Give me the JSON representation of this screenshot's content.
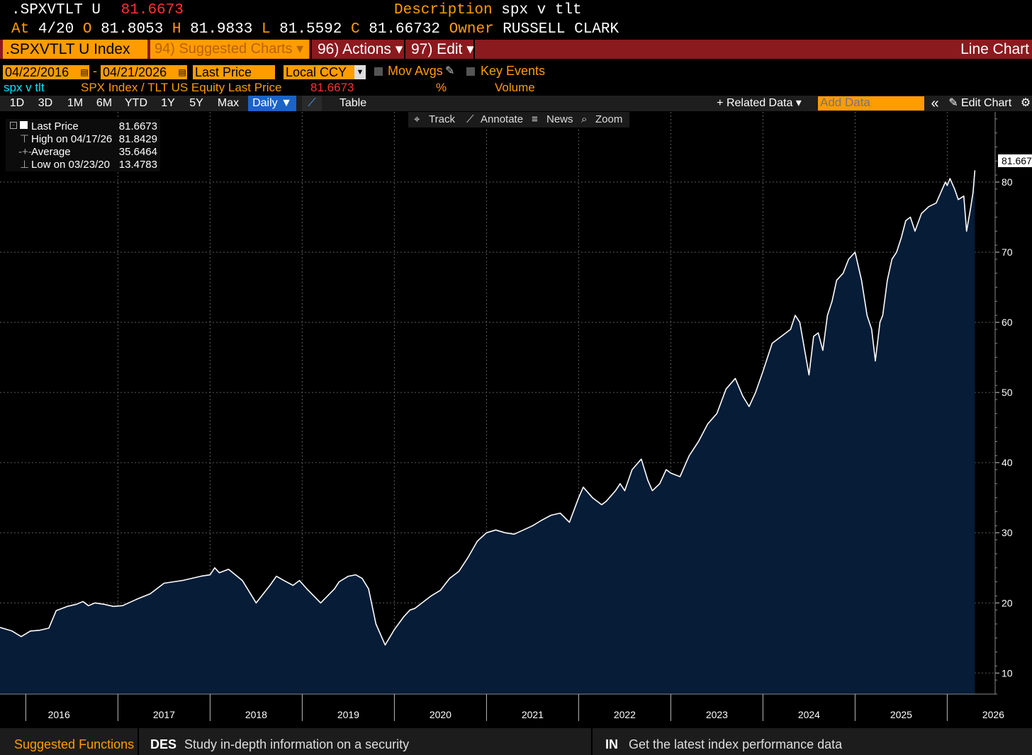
{
  "header": {
    "ticker": ".SPXVTLT U",
    "price": "81.6673",
    "description_label": "Description",
    "description_value": "spx v tlt",
    "at_label": "At",
    "at_value": "4/20",
    "open_label": "O",
    "open_value": "81.8053",
    "high_label": "H",
    "high_value": "81.9833",
    "low_label": "L",
    "low_value": "81.5592",
    "close_label": "C",
    "close_value": "81.66732",
    "owner_label": "Owner",
    "owner_value": "RUSSELL CLARK"
  },
  "menubar": {
    "security": ".SPXVTLT U Index",
    "suggested": "94) Suggested Charts ▾",
    "actions": "96) Actions ▾",
    "edit": "97) Edit ▾",
    "chart_type": "Line Chart"
  },
  "controls": {
    "start_date": "04/22/2016",
    "dash": "-",
    "end_date": "04/21/2026",
    "field": "Last Price",
    "currency": "Local CCY",
    "mov_avgs": "Mov Avgs",
    "key_events": "Key Events"
  },
  "series_row": {
    "name": "spx v tlt",
    "formula": "SPX Index / TLT US Equity Last Price",
    "value": "81.6673",
    "pct": "%",
    "volume": "Volume"
  },
  "periods": [
    "1D",
    "3D",
    "1M",
    "6M",
    "YTD",
    "1Y",
    "5Y",
    "Max"
  ],
  "frequency": "Daily ▼",
  "table_label": "Table",
  "right_tools": {
    "related": "+ Related Data ▾",
    "add_data_placeholder": "Add Data",
    "collapse": "«",
    "edit_chart": "Edit Chart"
  },
  "chart_tools": {
    "track": "Track",
    "annotate": "Annotate",
    "news": "News",
    "zoom": "Zoom"
  },
  "legend": {
    "last_label": "Last Price",
    "last_value": "81.6673",
    "high_label": "High on 04/17/26",
    "high_value": "81.8429",
    "avg_label": "Average",
    "avg_value": "35.6464",
    "low_label": "Low on 03/23/20",
    "low_value": "13.4783"
  },
  "last_tag": "81.667",
  "footer": {
    "suggested": "Suggested Functions",
    "des_code": "DES",
    "des_text": "Study in-depth information on a security",
    "in_code": "IN",
    "in_text": "Get the latest index performance data"
  },
  "colors": {
    "accent": "#ff9c00",
    "menubar": "#8b1a1f",
    "area_fill": "#061c37",
    "price_red": "#ff3232"
  },
  "chart_data": {
    "type": "area",
    "title": "spx v tlt",
    "xlabel": "",
    "ylabel": "",
    "ylim": [
      7,
      90
    ],
    "xlim": [
      2015.72,
      2026.52
    ],
    "yticks": [
      10,
      20,
      30,
      40,
      50,
      60,
      70,
      80
    ],
    "year_ticks": [
      2016,
      2017,
      2018,
      2019,
      2020,
      2021,
      2022,
      2023,
      2024,
      2025,
      2026
    ],
    "x": [
      2015.72,
      2015.85,
      2015.95,
      2016.05,
      2016.15,
      2016.25,
      2016.33,
      2016.45,
      2016.55,
      2016.62,
      2016.68,
      2016.75,
      2016.85,
      2016.95,
      2017.05,
      2017.2,
      2017.35,
      2017.5,
      2017.6,
      2017.7,
      2017.8,
      2017.9,
      2018.0,
      2018.05,
      2018.1,
      2018.2,
      2018.35,
      2018.5,
      2018.65,
      2018.72,
      2018.8,
      2018.9,
      2018.97,
      2019.05,
      2019.2,
      2019.35,
      2019.4,
      2019.5,
      2019.58,
      2019.65,
      2019.72,
      2019.8,
      2019.9,
      2020.0,
      2020.1,
      2020.17,
      2020.22,
      2020.3,
      2020.4,
      2020.5,
      2020.6,
      2020.7,
      2020.8,
      2020.9,
      2021.0,
      2021.1,
      2021.2,
      2021.3,
      2021.4,
      2021.5,
      2021.6,
      2021.7,
      2021.8,
      2021.9,
      2022.0,
      2022.05,
      2022.15,
      2022.25,
      2022.3,
      2022.4,
      2022.45,
      2022.5,
      2022.58,
      2022.68,
      2022.75,
      2022.8,
      2022.88,
      2022.95,
      2023.0,
      2023.1,
      2023.2,
      2023.3,
      2023.4,
      2023.5,
      2023.6,
      2023.7,
      2023.78,
      2023.85,
      2023.92,
      2024.0,
      2024.1,
      2024.2,
      2024.3,
      2024.35,
      2024.4,
      2024.5,
      2024.55,
      2024.6,
      2024.65,
      2024.7,
      2024.75,
      2024.8,
      2024.87,
      2024.93,
      2025.0,
      2025.07,
      2025.13,
      2025.18,
      2025.22,
      2025.27,
      2025.3,
      2025.35,
      2025.4,
      2025.45,
      2025.5,
      2025.55,
      2025.6,
      2025.65,
      2025.72,
      2025.8,
      2025.88,
      2025.93,
      2025.98,
      2026.0,
      2026.03,
      2026.08,
      2026.12,
      2026.18,
      2026.21,
      2026.25,
      2026.28,
      2026.3
    ],
    "values": [
      16.5,
      16.0,
      15.2,
      16.0,
      16.1,
      16.4,
      18.9,
      19.5,
      19.8,
      20.2,
      19.6,
      20.0,
      19.8,
      19.5,
      19.6,
      20.5,
      21.3,
      22.8,
      23.0,
      23.2,
      23.5,
      23.8,
      24.0,
      25.0,
      24.3,
      24.8,
      23.2,
      20.0,
      22.5,
      23.8,
      23.2,
      22.5,
      23.2,
      22.0,
      20.0,
      22.0,
      23.0,
      23.8,
      24.0,
      23.5,
      22.0,
      17.0,
      14.0,
      16.2,
      18.0,
      19.0,
      19.2,
      20.0,
      21.0,
      21.8,
      23.5,
      24.5,
      26.5,
      28.8,
      30.0,
      30.4,
      30.0,
      29.8,
      30.4,
      31.0,
      31.8,
      32.5,
      32.8,
      31.5,
      35.0,
      36.5,
      35.0,
      34.0,
      34.5,
      36.0,
      37.0,
      36.0,
      39.0,
      40.5,
      37.5,
      36.0,
      37.0,
      39.0,
      38.5,
      38.0,
      41.0,
      43.0,
      45.5,
      47.0,
      50.5,
      52.0,
      49.5,
      48.0,
      50.0,
      53.0,
      57.0,
      58.0,
      59.0,
      61.0,
      60.0,
      52.5,
      58.0,
      58.5,
      56.0,
      61.0,
      63.0,
      66.0,
      67.0,
      69.0,
      70.0,
      66.0,
      61.0,
      59.0,
      54.5,
      60.0,
      61.0,
      66.0,
      69.0,
      70.0,
      72.0,
      74.5,
      75.0,
      73.0,
      75.5,
      76.5,
      77.0,
      78.5,
      80.0,
      79.5,
      80.5,
      79.0,
      77.5,
      78.0,
      73.0,
      76.0,
      78.5,
      81.67
    ]
  }
}
